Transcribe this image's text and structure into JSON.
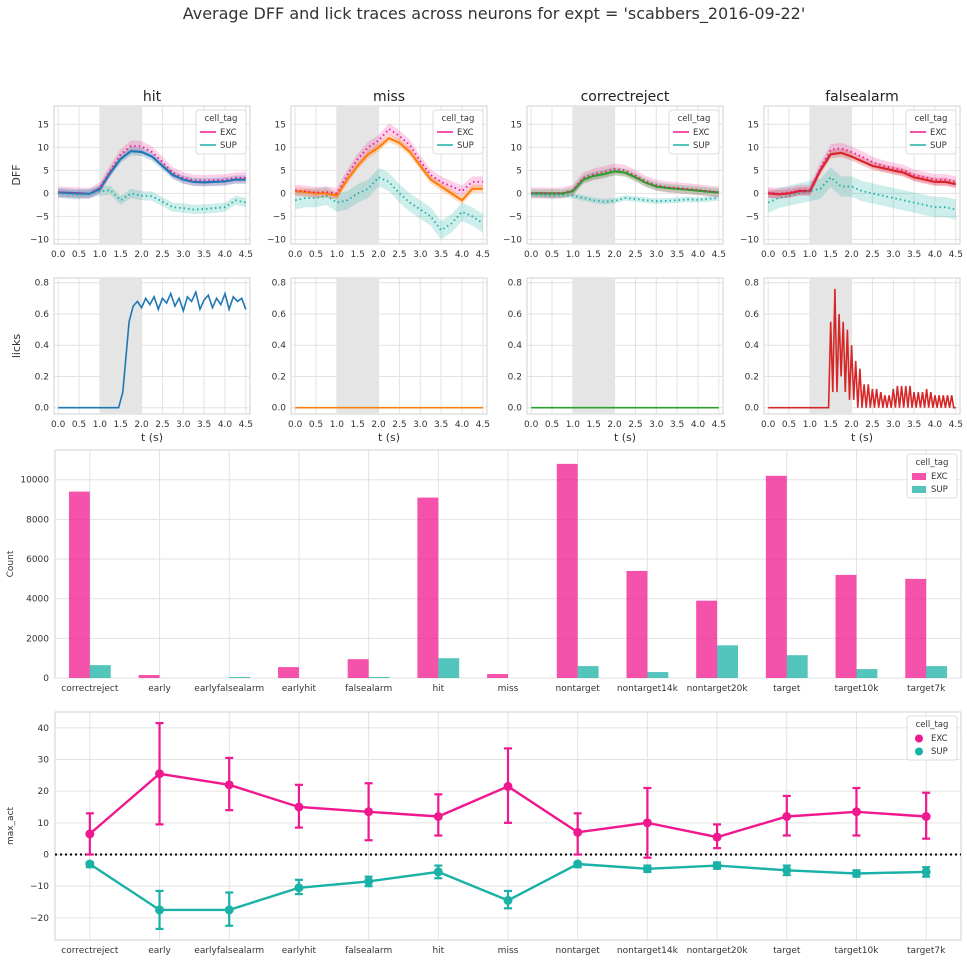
{
  "figure": {
    "suptitle": "Average DFF and lick traces across neurons for expt = 'scabbers_2016-09-22'"
  },
  "colors": {
    "EXC": "#f0188f",
    "SUP": "#1ab1a6",
    "hit": "#1f77b4",
    "miss": "#ff7f0e",
    "correctreject": "#2ca02c",
    "falsealarm": "#d62728",
    "stim_window": "#e5e5e5"
  },
  "chart_data": [
    {
      "type": "line",
      "title": "hit",
      "ylabel": "DFF",
      "xlim": [
        -0.1,
        4.6
      ],
      "ylim": [
        -11,
        19
      ],
      "xticks": [
        "0.0",
        "0.5",
        "1.0",
        "1.5",
        "2.0",
        "2.5",
        "3.0",
        "3.5",
        "4.0",
        "4.5"
      ],
      "yticks": [
        "−10",
        "−5",
        "0",
        "5",
        "10",
        "15"
      ],
      "shaded_window": [
        1.0,
        2.0
      ],
      "legend": {
        "title": "cell_tag",
        "entries": [
          "EXC",
          "SUP"
        ],
        "position": "top-right"
      },
      "x": [
        0,
        0.25,
        0.5,
        0.75,
        1.0,
        1.25,
        1.5,
        1.75,
        2.0,
        2.25,
        2.5,
        2.75,
        3.0,
        3.25,
        3.5,
        3.75,
        4.0,
        4.25,
        4.5
      ],
      "series": [
        {
          "name": "mean",
          "values": [
            0.2,
            0.1,
            0,
            -0.1,
            1.0,
            4.5,
            7.5,
            9.2,
            9.0,
            8.0,
            6.0,
            4.0,
            3.0,
            2.5,
            2.4,
            2.5,
            2.6,
            3.0,
            3.0
          ]
        },
        {
          "name": "EXC",
          "values": [
            0.3,
            0.2,
            0.1,
            0,
            1.2,
            5.0,
            8.5,
            10.3,
            10.2,
            9.0,
            6.8,
            4.5,
            3.4,
            2.9,
            2.8,
            2.9,
            3.0,
            3.4,
            3.4
          ]
        },
        {
          "name": "SUP",
          "values": [
            0,
            -0.2,
            -0.3,
            0,
            0.5,
            0.7,
            -1.5,
            0,
            -0.5,
            -0.6,
            -1.8,
            -3.0,
            -3.2,
            -3.5,
            -3.4,
            -3.2,
            -3.0,
            -1.5,
            -2.0
          ],
          "ci": 1.0
        }
      ]
    },
    {
      "type": "line",
      "title": "miss",
      "xlim": [
        -0.1,
        4.6
      ],
      "ylim": [
        -11,
        19
      ],
      "xticks": [
        "0.0",
        "0.5",
        "1.0",
        "1.5",
        "2.0",
        "2.5",
        "3.0",
        "3.5",
        "4.0",
        "4.5"
      ],
      "yticks": [
        "−10",
        "−5",
        "0",
        "5",
        "10",
        "15"
      ],
      "shaded_window": [
        1.0,
        2.0
      ],
      "legend": {
        "title": "cell_tag",
        "entries": [
          "EXC",
          "SUP"
        ],
        "position": "top-right"
      },
      "x": [
        0,
        0.25,
        0.5,
        0.75,
        1.0,
        1.25,
        1.5,
        1.75,
        2.0,
        2.25,
        2.5,
        2.75,
        3.0,
        3.25,
        3.5,
        3.75,
        4.0,
        4.25,
        4.5
      ],
      "series": [
        {
          "name": "mean",
          "values": [
            0.5,
            0.3,
            0,
            0,
            -0.5,
            3.0,
            6.0,
            8.5,
            10.0,
            12.0,
            11.0,
            9.0,
            6.0,
            3.0,
            1.5,
            0,
            -1.5,
            1.0,
            1.0
          ]
        },
        {
          "name": "EXC",
          "values": [
            0.7,
            0.5,
            0.2,
            0.3,
            0,
            4.0,
            7.5,
            10.0,
            11.5,
            14.0,
            12.5,
            10.5,
            7.0,
            4.0,
            2.5,
            1.5,
            0.5,
            2.5,
            2.5
          ]
        },
        {
          "name": "SUP",
          "values": [
            -1.5,
            -1.0,
            -1.0,
            -0.5,
            -2.0,
            -1.5,
            0,
            1.0,
            3.5,
            2.5,
            0,
            -2.0,
            -3.5,
            -5.0,
            -8.0,
            -6.5,
            -4.0,
            -5.0,
            -6.5
          ],
          "ci": 2.0
        }
      ]
    },
    {
      "type": "line",
      "title": "correctreject",
      "xlim": [
        -0.1,
        4.6
      ],
      "ylim": [
        -11,
        19
      ],
      "xticks": [
        "0.0",
        "0.5",
        "1.0",
        "1.5",
        "2.0",
        "2.5",
        "3.0",
        "3.5",
        "4.0",
        "4.5"
      ],
      "yticks": [
        "−10",
        "−5",
        "0",
        "5",
        "10",
        "15"
      ],
      "shaded_window": [
        1.0,
        2.0
      ],
      "legend": {
        "title": "cell_tag",
        "entries": [
          "EXC",
          "SUP"
        ],
        "position": "top-right"
      },
      "x": [
        0,
        0.25,
        0.5,
        0.75,
        1.0,
        1.25,
        1.5,
        1.75,
        2.0,
        2.25,
        2.5,
        2.75,
        3.0,
        3.25,
        3.5,
        3.75,
        4.0,
        4.25,
        4.5
      ],
      "series": [
        {
          "name": "mean",
          "values": [
            0,
            0,
            0,
            0,
            0.5,
            3.0,
            3.8,
            4.2,
            4.8,
            4.5,
            3.5,
            2.3,
            1.5,
            1.2,
            1.0,
            0.8,
            0.6,
            0.4,
            0.2
          ]
        },
        {
          "name": "EXC",
          "values": [
            0.1,
            0.1,
            0,
            0.1,
            0.7,
            3.4,
            4.2,
            4.7,
            5.3,
            5.0,
            3.9,
            2.6,
            1.8,
            1.4,
            1.2,
            1.0,
            0.8,
            0.5,
            0.3
          ]
        },
        {
          "name": "SUP",
          "values": [
            -0.2,
            -0.3,
            -0.5,
            -0.4,
            -0.5,
            -1.0,
            -1.5,
            -1.8,
            -1.6,
            -1.0,
            -1.2,
            -1.5,
            -1.7,
            -1.6,
            -1.5,
            -1.3,
            -1.4,
            -1.2,
            -1.0
          ],
          "ci": 0.6
        }
      ]
    },
    {
      "type": "line",
      "title": "falsealarm",
      "xlim": [
        -0.1,
        4.6
      ],
      "ylim": [
        -11,
        19
      ],
      "xticks": [
        "0.0",
        "0.5",
        "1.0",
        "1.5",
        "2.0",
        "2.5",
        "3.0",
        "3.5",
        "4.0",
        "4.5"
      ],
      "yticks": [
        "−10",
        "−5",
        "0",
        "5",
        "10",
        "15"
      ],
      "shaded_window": [
        1.0,
        2.0
      ],
      "legend": {
        "title": "cell_tag",
        "entries": [
          "EXC",
          "SUP"
        ],
        "position": "top-right"
      },
      "x": [
        0,
        0.25,
        0.5,
        0.75,
        1.0,
        1.25,
        1.5,
        1.75,
        2.0,
        2.25,
        2.5,
        2.75,
        3.0,
        3.25,
        3.5,
        3.75,
        4.0,
        4.25,
        4.5
      ],
      "series": [
        {
          "name": "mean",
          "values": [
            0,
            -0.2,
            0,
            0.5,
            0.5,
            5.0,
            8.5,
            8.8,
            8.0,
            7.0,
            6.0,
            5.5,
            5.0,
            4.5,
            3.5,
            3.0,
            2.5,
            2.5,
            2.0
          ]
        },
        {
          "name": "EXC",
          "values": [
            0.2,
            0,
            0.2,
            0.7,
            0.7,
            5.5,
            9.5,
            9.8,
            9.0,
            8.0,
            6.8,
            6.0,
            5.5,
            5.0,
            4.0,
            3.5,
            3.0,
            3.0,
            2.5
          ]
        },
        {
          "name": "SUP",
          "values": [
            -2.0,
            -1.0,
            -0.5,
            0,
            0.5,
            1.0,
            3.5,
            1.5,
            1.5,
            0.5,
            0,
            -0.5,
            -1.0,
            -1.5,
            -2.0,
            -2.5,
            -3.0,
            -3.0,
            -3.5
          ],
          "ci": 2.2
        }
      ]
    },
    {
      "type": "line",
      "ylabel": "licks",
      "xlabel": "t (s)",
      "xlim": [
        -0.1,
        4.6
      ],
      "ylim": [
        -0.04,
        0.83
      ],
      "xticks": [
        "0.0",
        "0.5",
        "1.0",
        "1.5",
        "2.0",
        "2.5",
        "3.0",
        "3.5",
        "4.0",
        "4.5"
      ],
      "yticks": [
        "0.0",
        "0.2",
        "0.4",
        "0.6",
        "0.8"
      ],
      "shaded_window": [
        1.0,
        2.0
      ],
      "x": [
        0,
        1.45,
        1.55,
        1.65,
        1.7,
        1.8,
        1.9,
        2.0,
        2.1,
        2.2,
        2.3,
        2.4,
        2.5,
        2.6,
        2.7,
        2.8,
        2.9,
        3.0,
        3.1,
        3.2,
        3.3,
        3.4,
        3.5,
        3.6,
        3.7,
        3.8,
        3.9,
        4.0,
        4.1,
        4.2,
        4.3,
        4.4,
        4.5
      ],
      "series": [
        {
          "name": "hit",
          "values": [
            0,
            0,
            0.1,
            0.4,
            0.55,
            0.65,
            0.68,
            0.64,
            0.7,
            0.66,
            0.71,
            0.63,
            0.7,
            0.67,
            0.73,
            0.65,
            0.7,
            0.62,
            0.71,
            0.68,
            0.74,
            0.63,
            0.69,
            0.72,
            0.64,
            0.7,
            0.66,
            0.73,
            0.63,
            0.71,
            0.68,
            0.7,
            0.63
          ]
        }
      ]
    },
    {
      "type": "line",
      "xlabel": "t (s)",
      "xlim": [
        -0.1,
        4.6
      ],
      "ylim": [
        -0.04,
        0.83
      ],
      "xticks": [
        "0.0",
        "0.5",
        "1.0",
        "1.5",
        "2.0",
        "2.5",
        "3.0",
        "3.5",
        "4.0",
        "4.5"
      ],
      "yticks": [
        "0.0",
        "0.2",
        "0.4",
        "0.6",
        "0.8"
      ],
      "shaded_window": [
        1.0,
        2.0
      ],
      "x": [
        0,
        4.5
      ],
      "series": [
        {
          "name": "miss",
          "values": [
            0,
            0
          ]
        }
      ]
    },
    {
      "type": "line",
      "xlabel": "t (s)",
      "xlim": [
        -0.1,
        4.6
      ],
      "ylim": [
        -0.04,
        0.83
      ],
      "xticks": [
        "0.0",
        "0.5",
        "1.0",
        "1.5",
        "2.0",
        "2.5",
        "3.0",
        "3.5",
        "4.0",
        "4.5"
      ],
      "yticks": [
        "0.0",
        "0.2",
        "0.4",
        "0.6",
        "0.8"
      ],
      "shaded_window": [
        1.0,
        2.0
      ],
      "x": [
        0,
        4.5
      ],
      "series": [
        {
          "name": "correctreject",
          "values": [
            0,
            0
          ]
        }
      ]
    },
    {
      "type": "line",
      "xlabel": "t (s)",
      "xlim": [
        -0.1,
        4.6
      ],
      "ylim": [
        -0.04,
        0.83
      ],
      "xticks": [
        "0.0",
        "0.5",
        "1.0",
        "1.5",
        "2.0",
        "2.5",
        "3.0",
        "3.5",
        "4.0",
        "4.5"
      ],
      "yticks": [
        "0.0",
        "0.2",
        "0.4",
        "0.6",
        "0.8"
      ],
      "shaded_window": [
        1.0,
        2.0
      ],
      "x": [
        0,
        1.45,
        1.5,
        1.55,
        1.6,
        1.65,
        1.7,
        1.75,
        1.8,
        1.85,
        1.9,
        1.95,
        2.0,
        2.05,
        2.1,
        2.15,
        2.2,
        2.25,
        2.3,
        2.35,
        2.4,
        2.45,
        2.5,
        2.55,
        2.6,
        2.65,
        2.7,
        2.75,
        2.8,
        2.85,
        2.9,
        2.95,
        3.0,
        3.05,
        3.1,
        3.15,
        3.2,
        3.25,
        3.3,
        3.35,
        3.4,
        3.45,
        3.5,
        3.55,
        3.6,
        3.65,
        3.7,
        3.75,
        3.8,
        3.85,
        3.9,
        3.95,
        4.0,
        4.05,
        4.1,
        4.15,
        4.2,
        4.25,
        4.3,
        4.35,
        4.4,
        4.45,
        4.5
      ],
      "series": [
        {
          "name": "falsealarm",
          "values": [
            0,
            0,
            0.55,
            0.1,
            0.76,
            0.1,
            0.6,
            0.2,
            0.55,
            0.1,
            0.5,
            0.05,
            0.4,
            0.05,
            0.3,
            0,
            0.25,
            0,
            0.15,
            0,
            0.15,
            0,
            0.12,
            0,
            0.12,
            0,
            0.1,
            0,
            0.08,
            0,
            0.08,
            0,
            0.12,
            0,
            0.14,
            0,
            0.14,
            0,
            0.14,
            0,
            0.14,
            0,
            0.1,
            0,
            0.1,
            0,
            0.1,
            0,
            0.12,
            0,
            0.1,
            0,
            0.08,
            0,
            0.08,
            0,
            0.08,
            0,
            0.08,
            0,
            0.08,
            0,
            0
          ]
        }
      ]
    },
    {
      "type": "bar",
      "ylabel": "Count",
      "ylim": [
        0,
        11500
      ],
      "yticks": [
        "0",
        "2000",
        "4000",
        "6000",
        "8000",
        "10000"
      ],
      "categories": [
        "correctreject",
        "early",
        "earlyfalsealarm",
        "earlyhit",
        "falsealarm",
        "hit",
        "miss",
        "nontarget",
        "nontarget14k",
        "nontarget20k",
        "target",
        "target10k",
        "target7k"
      ],
      "legend": {
        "title": "cell_tag",
        "entries": [
          "EXC",
          "SUP"
        ],
        "position": "top-right"
      },
      "series": [
        {
          "name": "EXC",
          "values": [
            9400,
            150,
            0,
            550,
            950,
            9100,
            200,
            10800,
            5400,
            3900,
            10200,
            5200,
            5000
          ]
        },
        {
          "name": "SUP",
          "values": [
            650,
            0,
            50,
            0,
            50,
            1000,
            0,
            600,
            300,
            1650,
            1150,
            450,
            600
          ]
        }
      ]
    },
    {
      "type": "line",
      "ylabel": "max_act",
      "ylim": [
        -27,
        45
      ],
      "yticks": [
        "−20",
        "−10",
        "0",
        "10",
        "20",
        "30",
        "40"
      ],
      "categories": [
        "correctreject",
        "early",
        "earlyfalsealarm",
        "earlyhit",
        "falsealarm",
        "hit",
        "miss",
        "nontarget",
        "nontarget14k",
        "nontarget20k",
        "target",
        "target10k",
        "target7k"
      ],
      "reference_line": 0,
      "legend": {
        "title": "cell_tag",
        "entries": [
          "EXC",
          "SUP"
        ],
        "position": "top-right"
      },
      "series": [
        {
          "name": "EXC",
          "values": [
            6.5,
            25.5,
            22,
            15,
            13.5,
            12,
            21.5,
            7,
            10,
            5.5,
            12,
            13.5,
            12
          ],
          "err": [
            [
              0,
              13
            ],
            [
              9.5,
              41.5
            ],
            [
              14,
              30.5
            ],
            [
              8.5,
              22
            ],
            [
              4.5,
              22.5
            ],
            [
              6,
              19
            ],
            [
              10,
              33.5
            ],
            [
              0,
              13
            ],
            [
              -1,
              21
            ],
            [
              2,
              9.5
            ],
            [
              6,
              18.5
            ],
            [
              6,
              21
            ],
            [
              5,
              19.5
            ]
          ]
        },
        {
          "name": "SUP",
          "values": [
            -3,
            -17.5,
            -17.5,
            -10.5,
            -8.5,
            -5.5,
            -14.5,
            -3,
            -4.5,
            -3.5,
            -5,
            -6,
            -5.5
          ],
          "err": [
            [
              -4,
              -2.5
            ],
            [
              -23.5,
              -11.5
            ],
            [
              -22.5,
              -12
            ],
            [
              -12.5,
              -8
            ],
            [
              -10,
              -7
            ],
            [
              -7.5,
              -3.5
            ],
            [
              -17,
              -11.5
            ],
            [
              -4,
              -2.5
            ],
            [
              -5.5,
              -3.5
            ],
            [
              -4.5,
              -2.5
            ],
            [
              -6.5,
              -3.5
            ],
            [
              -7,
              -5
            ],
            [
              -7,
              -4
            ]
          ]
        }
      ]
    }
  ]
}
